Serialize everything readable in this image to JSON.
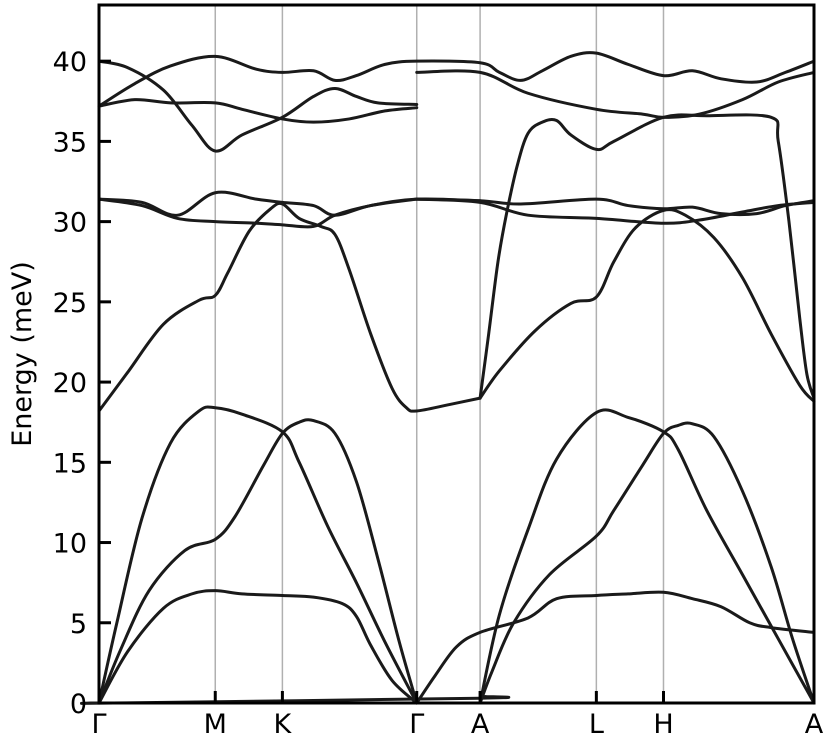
{
  "chart_data": {
    "type": "line",
    "title": "",
    "xlabel": "",
    "ylabel": "Energy (meV)",
    "ylim": [
      0,
      43.5
    ],
    "yticks": [
      0,
      5,
      10,
      15,
      20,
      25,
      30,
      35,
      40
    ],
    "xlim": [
      0,
      1
    ],
    "grid": "vertical lines at high-symmetry points",
    "legend": "none",
    "colors": {
      "line": "#1a1a1a",
      "gridline": "#b0b0b0",
      "frame": "#000000"
    },
    "kpoints": [
      {
        "label": "Γ",
        "x": 0.0
      },
      {
        "label": "M",
        "x": 0.1626
      },
      {
        "label": "K",
        "x": 0.2565
      },
      {
        "label": "Γ",
        "x": 0.4444
      },
      {
        "label": "A",
        "x": 0.533
      },
      {
        "label": "L",
        "x": 0.6956
      },
      {
        "label": "H",
        "x": 0.7895
      },
      {
        "label": "A",
        "x": 1.0
      }
    ],
    "series": [
      {
        "points": [
          [
            0.0,
            0
          ],
          [
            0.04,
            3.2
          ],
          [
            0.09,
            5.9
          ],
          [
            0.13,
            6.8
          ],
          [
            0.1626,
            7.0
          ],
          [
            0.2,
            6.8
          ],
          [
            0.2565,
            6.7
          ],
          [
            0.3,
            6.6
          ],
          [
            0.34,
            6.2
          ],
          [
            0.36,
            5.4
          ],
          [
            0.38,
            3.6
          ],
          [
            0.41,
            1.4
          ],
          [
            0.4444,
            0
          ]
        ]
      },
      {
        "points": [
          [
            0.0,
            0
          ],
          [
            0.03,
            3.3
          ],
          [
            0.07,
            7.0
          ],
          [
            0.12,
            9.5
          ],
          [
            0.1626,
            10.2
          ],
          [
            0.19,
            11.6
          ],
          [
            0.23,
            14.8
          ],
          [
            0.2565,
            16.8
          ],
          [
            0.28,
            17.5
          ],
          [
            0.3,
            17.6
          ],
          [
            0.33,
            16.8
          ],
          [
            0.36,
            13.8
          ],
          [
            0.39,
            9.0
          ],
          [
            0.42,
            3.8
          ],
          [
            0.4444,
            0
          ]
        ]
      },
      {
        "points": [
          [
            0.0,
            0
          ],
          [
            0.025,
            5.0
          ],
          [
            0.06,
            11.5
          ],
          [
            0.1,
            16.2
          ],
          [
            0.14,
            18.2
          ],
          [
            0.1626,
            18.4
          ],
          [
            0.2,
            18.0
          ],
          [
            0.2565,
            16.9
          ],
          [
            0.28,
            15.0
          ],
          [
            0.32,
            11.0
          ],
          [
            0.36,
            7.5
          ],
          [
            0.4,
            3.8
          ],
          [
            0.4444,
            0
          ]
        ]
      },
      {
        "points": [
          [
            0.0,
            18.2
          ],
          [
            0.04,
            20.6
          ],
          [
            0.09,
            23.6
          ],
          [
            0.14,
            25.1
          ],
          [
            0.1626,
            25.4
          ],
          [
            0.18,
            26.8
          ],
          [
            0.21,
            29.4
          ],
          [
            0.24,
            30.8
          ],
          [
            0.2565,
            31.1
          ],
          [
            0.28,
            30.2
          ],
          [
            0.31,
            29.7
          ],
          [
            0.33,
            29.2
          ],
          [
            0.35,
            27.0
          ],
          [
            0.38,
            23.0
          ],
          [
            0.41,
            19.6
          ],
          [
            0.43,
            18.4
          ],
          [
            0.4444,
            18.2
          ],
          [
            0.49,
            18.6
          ],
          [
            0.533,
            19.0
          ]
        ]
      },
      {
        "points": [
          [
            0.0,
            31.4
          ],
          [
            0.06,
            31.0
          ],
          [
            0.11,
            30.2
          ],
          [
            0.1626,
            30.0
          ],
          [
            0.22,
            29.9
          ],
          [
            0.2565,
            29.8
          ],
          [
            0.3,
            29.7
          ],
          [
            0.33,
            30.4
          ],
          [
            0.38,
            31.0
          ],
          [
            0.4444,
            31.4
          ],
          [
            0.533,
            31.3
          ]
        ]
      },
      {
        "points": [
          [
            0.0,
            31.4
          ],
          [
            0.06,
            31.2
          ],
          [
            0.11,
            30.4
          ],
          [
            0.1626,
            31.8
          ],
          [
            0.22,
            31.4
          ],
          [
            0.2565,
            31.2
          ],
          [
            0.3,
            31.0
          ],
          [
            0.33,
            30.4
          ],
          [
            0.38,
            31.0
          ],
          [
            0.4444,
            31.4
          ]
        ]
      },
      {
        "points": [
          [
            0.0,
            40.0
          ],
          [
            0.04,
            39.6
          ],
          [
            0.09,
            38.2
          ],
          [
            0.13,
            36.0
          ],
          [
            0.1626,
            34.4
          ],
          [
            0.2,
            35.4
          ],
          [
            0.2565,
            36.5
          ],
          [
            0.3,
            37.8
          ],
          [
            0.33,
            38.3
          ],
          [
            0.36,
            37.8
          ],
          [
            0.39,
            37.4
          ],
          [
            0.4444,
            37.3
          ]
        ]
      },
      {
        "points": [
          [
            0.0,
            37.2
          ],
          [
            0.05,
            38.6
          ],
          [
            0.1,
            39.7
          ],
          [
            0.1626,
            40.3
          ],
          [
            0.22,
            39.5
          ],
          [
            0.2565,
            39.3
          ],
          [
            0.3,
            39.4
          ],
          [
            0.33,
            38.8
          ],
          [
            0.36,
            39.1
          ],
          [
            0.4,
            39.8
          ],
          [
            0.4444,
            40.0
          ],
          [
            0.533,
            39.9
          ],
          [
            0.56,
            39.3
          ],
          [
            0.59,
            38.8
          ],
          [
            0.62,
            39.4
          ],
          [
            0.66,
            40.3
          ],
          [
            0.6956,
            40.5
          ],
          [
            0.74,
            39.8
          ],
          [
            0.7895,
            39.1
          ],
          [
            0.83,
            39.4
          ],
          [
            0.87,
            38.9
          ],
          [
            0.92,
            38.7
          ],
          [
            0.96,
            39.3
          ],
          [
            1.0,
            40.0
          ]
        ]
      },
      {
        "points": [
          [
            0.0,
            37.2
          ],
          [
            0.05,
            37.6
          ],
          [
            0.1,
            37.4
          ],
          [
            0.1626,
            37.4
          ],
          [
            0.2,
            37.0
          ],
          [
            0.2565,
            36.4
          ],
          [
            0.3,
            36.2
          ],
          [
            0.35,
            36.4
          ],
          [
            0.4,
            36.9
          ],
          [
            0.4444,
            37.1
          ]
        ]
      },
      {
        "points": [
          [
            0.0,
            0
          ],
          [
            0.02,
            0
          ],
          [
            0.533,
            0.3
          ],
          [
            0.54,
            0.4
          ]
        ]
      },
      {
        "points": [
          [
            0.4444,
            0
          ],
          [
            0.47,
            1.7
          ],
          [
            0.5,
            3.5
          ],
          [
            0.533,
            4.4
          ],
          [
            0.6,
            5.3
          ],
          [
            0.64,
            6.5
          ],
          [
            0.6956,
            6.7
          ],
          [
            0.74,
            6.8
          ],
          [
            0.7895,
            6.9
          ],
          [
            0.83,
            6.5
          ],
          [
            0.87,
            6.0
          ],
          [
            0.91,
            5.0
          ],
          [
            0.94,
            4.7
          ],
          [
            1.0,
            4.4
          ]
        ]
      },
      {
        "points": [
          [
            0.533,
            0
          ],
          [
            0.55,
            2.0
          ],
          [
            0.58,
            5.0
          ],
          [
            0.63,
            8.0
          ],
          [
            0.6956,
            10.4
          ],
          [
            0.72,
            12.0
          ],
          [
            0.76,
            14.8
          ],
          [
            0.7895,
            16.8
          ],
          [
            0.81,
            17.3
          ],
          [
            0.83,
            17.4
          ],
          [
            0.86,
            16.6
          ],
          [
            0.9,
            13.2
          ],
          [
            0.94,
            8.5
          ],
          [
            0.97,
            4.0
          ],
          [
            1.0,
            0
          ]
        ]
      },
      {
        "points": [
          [
            0.533,
            0
          ],
          [
            0.56,
            5.5
          ],
          [
            0.6,
            10.8
          ],
          [
            0.64,
            15.2
          ],
          [
            0.6956,
            18.1
          ],
          [
            0.74,
            17.8
          ],
          [
            0.7895,
            16.9
          ],
          [
            0.81,
            15.8
          ],
          [
            0.85,
            12.0
          ],
          [
            0.9,
            8.0
          ],
          [
            0.95,
            4.0
          ],
          [
            1.0,
            0
          ]
        ]
      },
      {
        "points": [
          [
            0.533,
            19.0
          ],
          [
            0.56,
            20.7
          ],
          [
            0.61,
            23.2
          ],
          [
            0.66,
            24.9
          ],
          [
            0.6956,
            25.3
          ],
          [
            0.72,
            27.5
          ],
          [
            0.75,
            29.6
          ],
          [
            0.7895,
            30.7
          ],
          [
            0.82,
            30.4
          ],
          [
            0.86,
            29.0
          ],
          [
            0.9,
            26.5
          ],
          [
            0.94,
            23.0
          ],
          [
            0.98,
            19.8
          ],
          [
            1.0,
            18.8
          ]
        ]
      },
      {
        "points": [
          [
            0.533,
            19.0
          ],
          [
            0.545,
            23.0
          ],
          [
            0.558,
            27.5
          ],
          [
            0.57,
            30.5
          ],
          [
            0.585,
            33.5
          ],
          [
            0.6,
            35.5
          ],
          [
            0.62,
            36.2
          ],
          [
            0.64,
            36.3
          ],
          [
            0.66,
            35.4
          ],
          [
            0.6956,
            34.5
          ],
          [
            0.72,
            35.0
          ],
          [
            0.7895,
            36.5
          ],
          [
            0.85,
            36.6
          ],
          [
            0.94,
            36.5
          ],
          [
            0.95,
            35.0
          ],
          [
            0.965,
            30.0
          ],
          [
            0.98,
            24.0
          ],
          [
            0.99,
            20.5
          ],
          [
            1.0,
            19.0
          ]
        ]
      },
      {
        "points": [
          [
            0.4444,
            31.4
          ],
          [
            0.533,
            31.3
          ],
          [
            0.59,
            31.1
          ],
          [
            0.6956,
            31.4
          ],
          [
            0.74,
            31.0
          ],
          [
            0.7895,
            30.8
          ],
          [
            0.83,
            30.9
          ],
          [
            0.87,
            30.5
          ],
          [
            0.92,
            30.5
          ],
          [
            0.96,
            31.0
          ],
          [
            1.0,
            31.3
          ]
        ]
      },
      {
        "points": [
          [
            0.4444,
            31.4
          ],
          [
            0.533,
            31.2
          ],
          [
            0.6,
            30.4
          ],
          [
            0.6956,
            30.2
          ],
          [
            0.7895,
            29.9
          ],
          [
            0.84,
            30.1
          ],
          [
            0.9,
            30.6
          ],
          [
            0.95,
            31.0
          ],
          [
            1.0,
            31.2
          ]
        ]
      },
      {
        "points": [
          [
            0.4444,
            39.3
          ],
          [
            0.533,
            39.3
          ],
          [
            0.6,
            38.0
          ],
          [
            0.6956,
            37.0
          ],
          [
            0.76,
            36.7
          ],
          [
            0.7895,
            36.5
          ],
          [
            0.84,
            36.7
          ],
          [
            0.9,
            37.6
          ],
          [
            0.95,
            38.7
          ],
          [
            1.0,
            39.3
          ]
        ]
      }
    ]
  }
}
